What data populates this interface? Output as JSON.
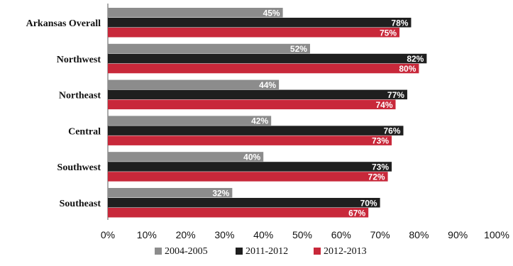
{
  "chart_data": {
    "type": "bar",
    "orientation": "horizontal",
    "title": "",
    "xlabel": "",
    "ylabel": "",
    "categories": [
      "Arkansas Overall",
      "Northwest",
      "Northeast",
      "Central",
      "Southwest",
      "Southeast"
    ],
    "series": [
      {
        "name": "2004-2005",
        "values": [
          45,
          52,
          44,
          42,
          40,
          32
        ],
        "labels": [
          "45%",
          "52%",
          "44%",
          "42%",
          "40%",
          "32%"
        ],
        "color": "#8c8c8c"
      },
      {
        "name": "2011-2012",
        "values": [
          78,
          82,
          77,
          76,
          73,
          70
        ],
        "labels": [
          "78%",
          "82%",
          "77%",
          "76%",
          "73%",
          "70%"
        ],
        "color": "#1f1f1f"
      },
      {
        "name": "2012-2013",
        "values": [
          75,
          80,
          74,
          73,
          72,
          67
        ],
        "labels": [
          "75%",
          "80%",
          "74%",
          "73%",
          "72%",
          "67%"
        ],
        "color": "#c8283a"
      }
    ],
    "xlim": [
      0,
      100
    ],
    "x_ticks": [
      "0%",
      "10%",
      "20%",
      "30%",
      "40%",
      "50%",
      "60%",
      "70%",
      "80%",
      "90%",
      "100%"
    ],
    "grid": false,
    "legend_position": "bottom"
  }
}
